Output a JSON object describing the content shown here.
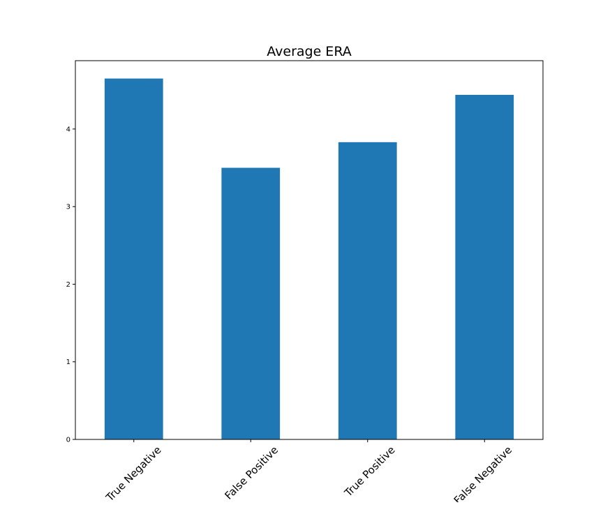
{
  "chart_data": {
    "type": "bar",
    "title": "Average ERA",
    "xlabel": "",
    "ylabel": "",
    "categories": [
      "True Negative",
      "False Positive",
      "True Positive",
      "False Negative"
    ],
    "values": [
      4.65,
      3.5,
      3.83,
      4.44
    ],
    "ylim": [
      0,
      4.88
    ],
    "yticks": [
      0,
      1,
      2,
      3,
      4
    ],
    "bar_color": "#1f77b4",
    "grid": false,
    "legend": "none"
  }
}
